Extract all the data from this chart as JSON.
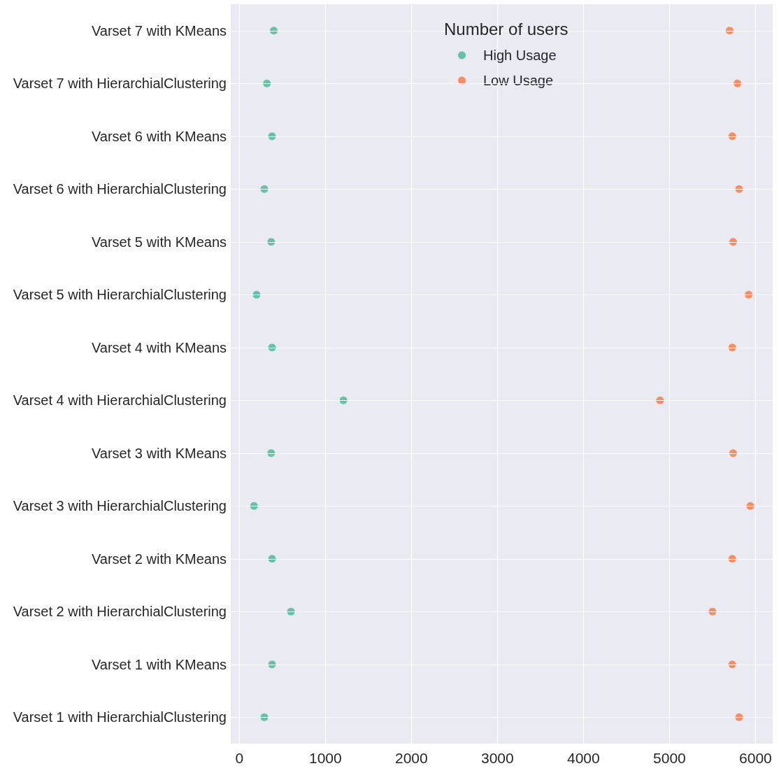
{
  "chart_data": {
    "type": "scatter",
    "orientation": "horizontal",
    "legend_title": "Number of users",
    "categories": [
      "Varset 7 with KMeans",
      "Varset 7 with HierarchialClustering",
      "Varset 6 with KMeans",
      "Varset 6 with HierarchialClustering",
      "Varset 5 with KMeans",
      "Varset 5 with HierarchialClustering",
      "Varset 4 with KMeans",
      "Varset 4 with HierarchialClustering",
      "Varset 3 with KMeans",
      "Varset 3 with HierarchialClustering",
      "Varset 2 with KMeans",
      "Varset 2 with HierarchialClustering",
      "Varset 1 with KMeans",
      "Varset 1 with HierarchialClustering"
    ],
    "series": [
      {
        "name": "High Usage",
        "color": "#66c2a5",
        "values": [
          400,
          320,
          380,
          290,
          370,
          200,
          380,
          1210,
          370,
          170,
          380,
          600,
          380,
          290
        ]
      },
      {
        "name": "Low Usage",
        "color": "#fc8d62",
        "values": [
          5700,
          5790,
          5730,
          5810,
          5740,
          5920,
          5730,
          4890,
          5740,
          5940,
          5730,
          5500,
          5730,
          5810
        ]
      }
    ],
    "xlim": [
      -100,
      6200
    ],
    "xticks": [
      0,
      1000,
      2000,
      3000,
      4000,
      5000,
      6000
    ],
    "grid": true,
    "legend": "top",
    "marker": "circle"
  }
}
